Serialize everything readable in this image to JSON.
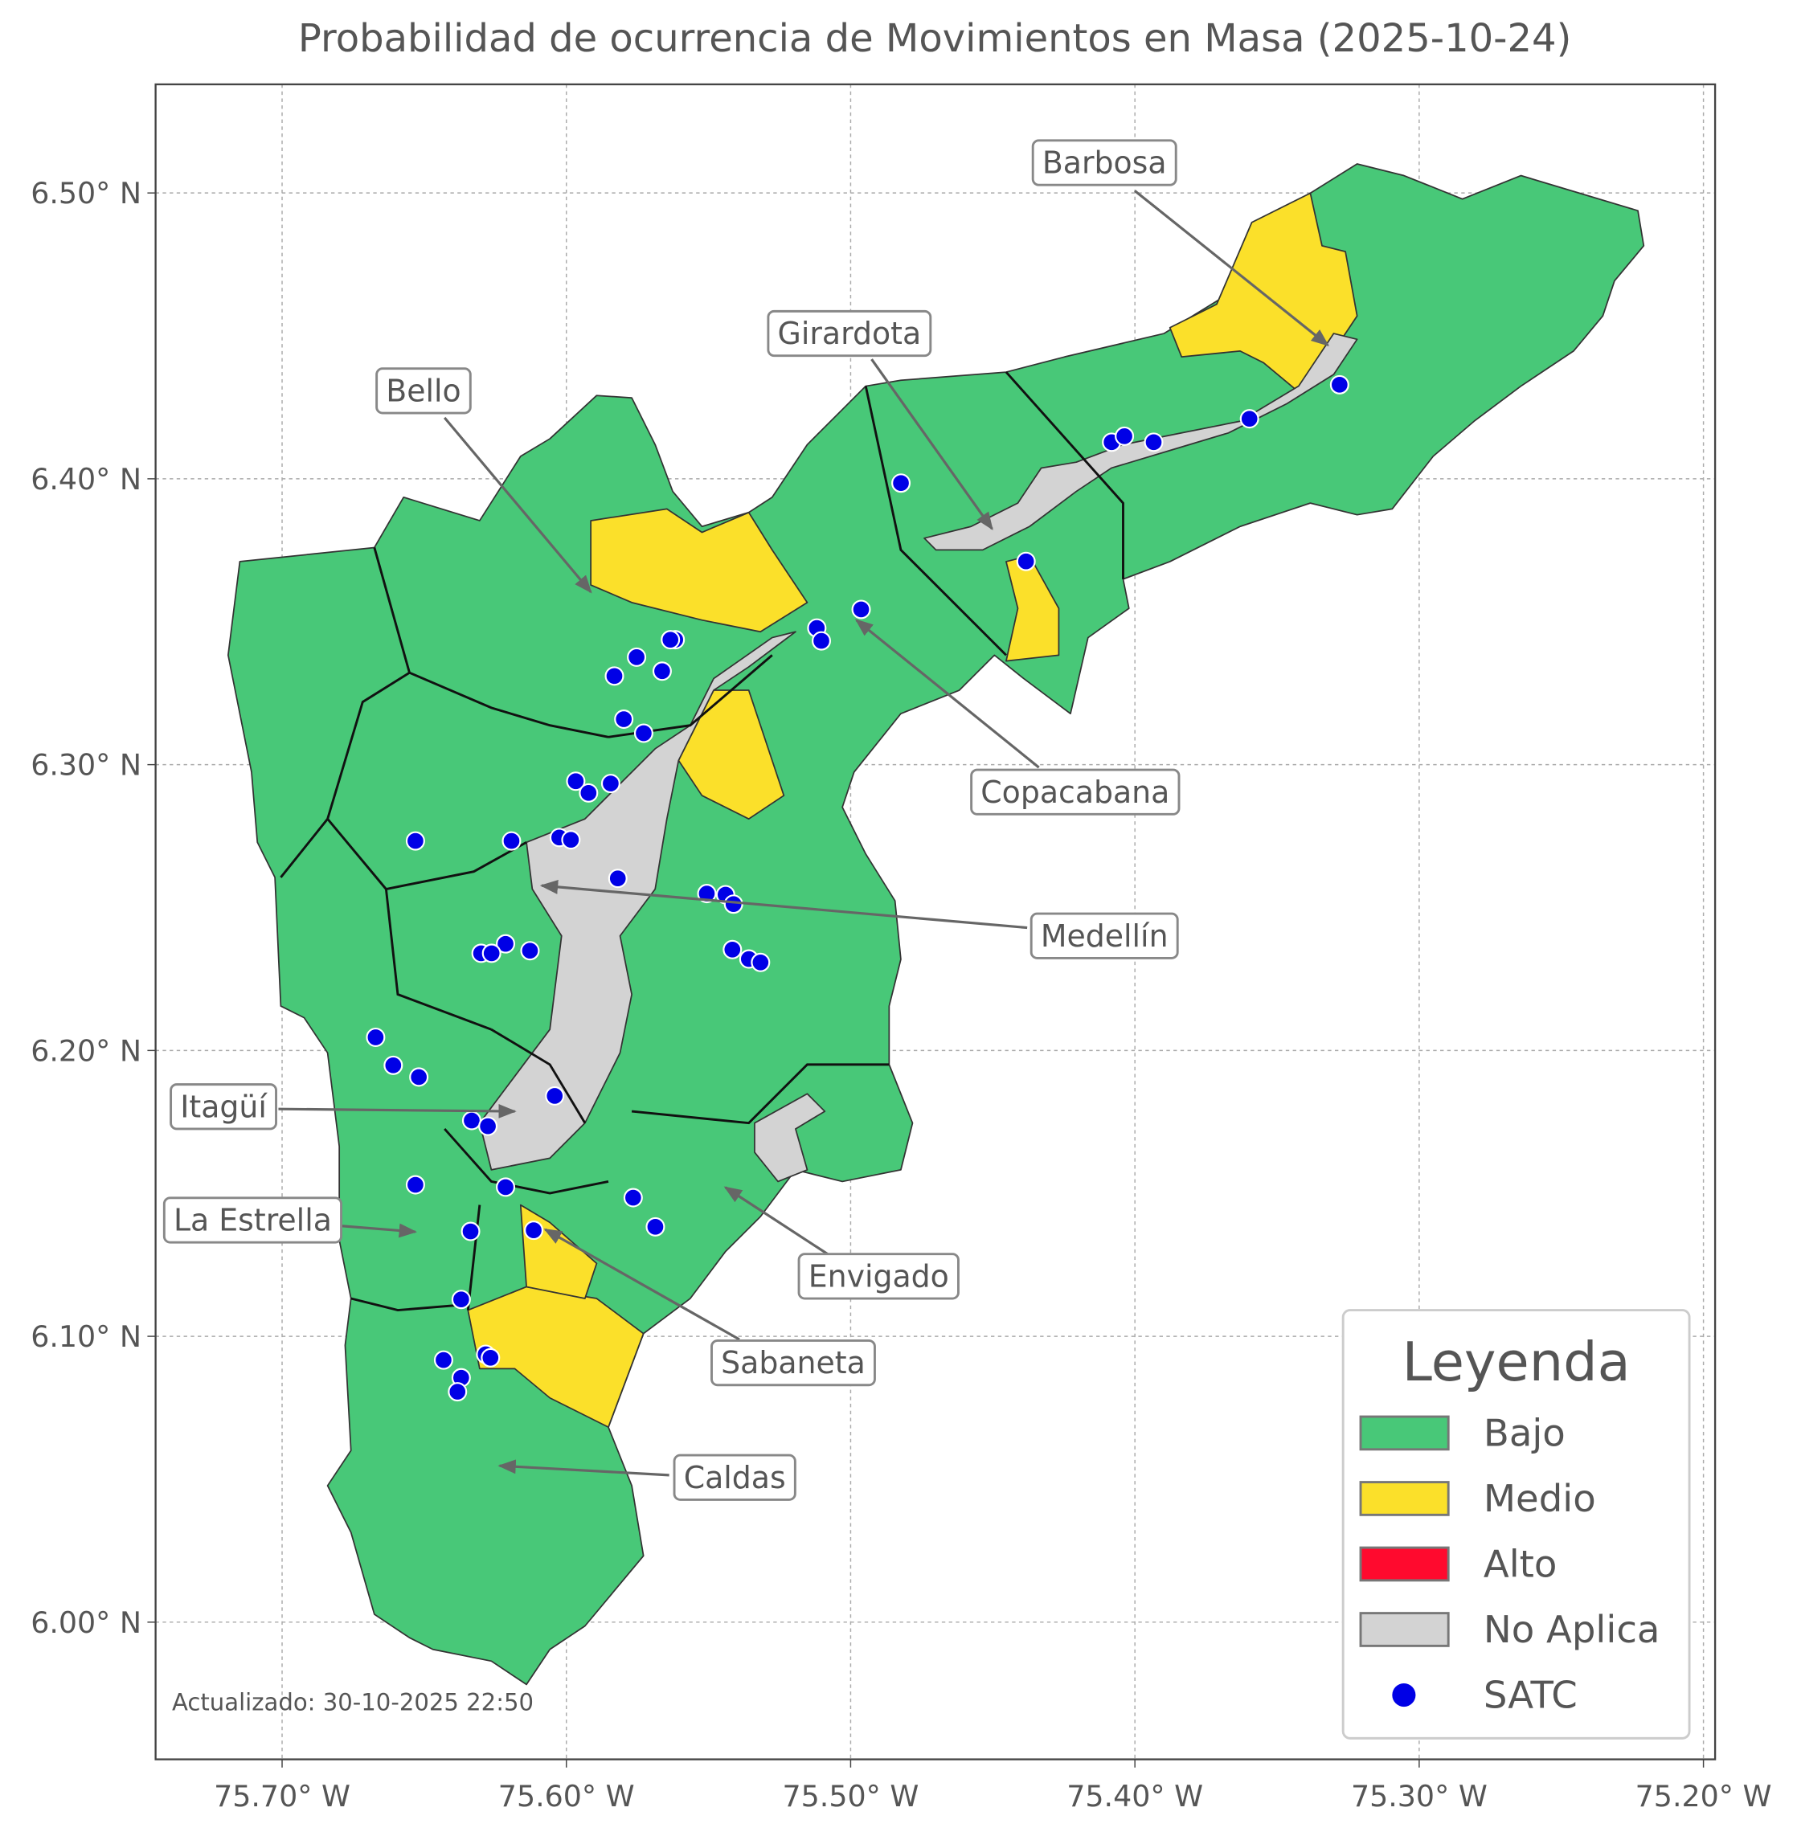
{
  "chart_data": {
    "type": "map",
    "title": "Probabilidad de ocurrencia de Movimientos en Masa (2025-10-24)",
    "xlim": [
      -75.7445,
      -75.1959
    ],
    "ylim": [
      5.952,
      6.538
    ],
    "xticks": [
      {
        "value": -75.7,
        "label": "75.70° W"
      },
      {
        "value": -75.6,
        "label": "75.60° W"
      },
      {
        "value": -75.5,
        "label": "75.50° W"
      },
      {
        "value": -75.4,
        "label": "75.40° W"
      },
      {
        "value": -75.3,
        "label": "75.30° W"
      },
      {
        "value": -75.2,
        "label": "75.20° W"
      }
    ],
    "yticks": [
      {
        "value": 6.0,
        "label": "6.00° N"
      },
      {
        "value": 6.1,
        "label": "6.10° N"
      },
      {
        "value": 6.2,
        "label": "6.20° N"
      },
      {
        "value": 6.3,
        "label": "6.30° N"
      },
      {
        "value": 6.4,
        "label": "6.40° N"
      },
      {
        "value": 6.5,
        "label": "6.50° N"
      }
    ],
    "grid": true,
    "annotations": [
      "Barbosa",
      "Girardota",
      "Bello",
      "Copacabana",
      "Medellín",
      "Itagüí",
      "La Estrella",
      "Envigado",
      "Sabaneta",
      "Caldas"
    ],
    "legend": {
      "title": "Leyenda",
      "position": "lower right",
      "items": [
        {
          "name": "Bajo",
          "color": "#48c878"
        },
        {
          "name": "Medio",
          "color": "#fbe02a"
        },
        {
          "name": "Alto",
          "color": "#ff0a2e"
        },
        {
          "name": "No Aplica",
          "color": "#d3d3d3"
        }
      ]
    },
    "series": [
      {
        "name": "SATC",
        "color": "#0000e6",
        "x": [
          -75.328,
          -75.3597,
          -75.4082,
          -75.4037,
          -75.3934,
          -75.4823,
          -75.4383,
          -75.4963,
          -75.5119,
          -75.5103,
          -75.5617,
          -75.5634,
          -75.5753,
          -75.5663,
          -75.5831,
          -75.5798,
          -75.5728,
          -75.5967,
          -75.5922,
          -75.5844,
          -75.6025,
          -75.5984,
          -75.6193,
          -75.6531,
          -75.5819,
          -75.5506,
          -75.544,
          -75.5412,
          -75.5416,
          -75.5358,
          -75.5317,
          -75.6214,
          -75.63,
          -75.6263,
          -75.6128,
          -75.6671,
          -75.6609,
          -75.6519,
          -75.6041,
          -75.6333,
          -75.6276,
          -75.6531,
          -75.6214,
          -75.5765,
          -75.5687,
          -75.6337,
          -75.6115,
          -75.637,
          -75.6432,
          -75.6284,
          -75.6267,
          -75.637,
          -75.6383
        ],
        "values": [
          6.4329,
          6.421,
          6.4128,
          6.4149,
          6.4128,
          6.3985,
          6.3711,
          6.3543,
          6.3478,
          6.3433,
          6.3437,
          6.3437,
          6.3376,
          6.3327,
          6.331,
          6.3159,
          6.311,
          6.2942,
          6.2901,
          6.2934,
          6.2745,
          6.2737,
          6.2733,
          6.2733,
          6.2602,
          6.2549,
          6.2545,
          6.2512,
          6.2353,
          6.232,
          6.2308,
          6.2373,
          6.234,
          6.234,
          6.2349,
          6.2046,
          6.1948,
          6.1907,
          6.1841,
          6.1755,
          6.1735,
          6.153,
          6.1522,
          6.1485,
          6.1383,
          6.1367,
          6.1371,
          6.1129,
          6.0917,
          6.0937,
          6.0925,
          6.0855,
          6.0806
        ]
      }
    ],
    "footnote": "Actualizado: 30-10-2025 22:50"
  }
}
